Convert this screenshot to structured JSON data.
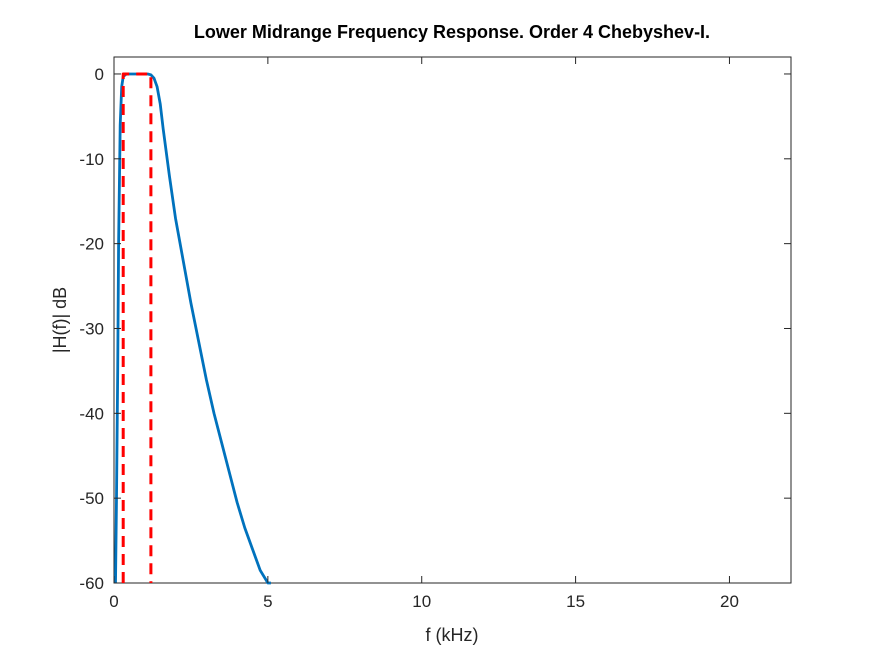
{
  "chart_data": {
    "type": "line",
    "title": "Lower Midrange Frequency Response. Order 4 Chebyshev-I.",
    "xlabel": "f (kHz)",
    "ylabel": "|H(f)| dB",
    "xlim": [
      0,
      22
    ],
    "ylim": [
      -60,
      2
    ],
    "xticks": [
      0,
      5,
      10,
      15,
      20
    ],
    "yticks": [
      0,
      -10,
      -20,
      -30,
      -40,
      -50,
      -60
    ],
    "grid": false,
    "legend": "none",
    "series": [
      {
        "color": "#0072BD",
        "style": "solid",
        "x": [
          0.05,
          0.08,
          0.12,
          0.15,
          0.2,
          0.25,
          0.3,
          0.4,
          0.6,
          0.8,
          1.0,
          1.1,
          1.2,
          1.3,
          1.4,
          1.5,
          1.6,
          1.8,
          2.0,
          2.25,
          2.5,
          2.75,
          3.0,
          3.25,
          3.5,
          3.75,
          4.0,
          4.25,
          4.5,
          4.75,
          5.0,
          5.1
        ],
        "y": [
          -60,
          -50,
          -35,
          -20,
          -6,
          -1.5,
          -0.3,
          0,
          0,
          0,
          0,
          0,
          -0.1,
          -0.5,
          -1.5,
          -3.5,
          -6.5,
          -12,
          -17,
          -22,
          -27,
          -31.5,
          -36,
          -40,
          -43.5,
          -47,
          -50.5,
          -53.5,
          -56,
          -58.5,
          -60,
          -60
        ]
      },
      {
        "color": "#FF0000",
        "style": "dashed",
        "x": [
          0.3,
          0.3,
          1.2,
          1.2
        ],
        "y": [
          -60,
          0,
          0,
          -60
        ]
      }
    ]
  }
}
